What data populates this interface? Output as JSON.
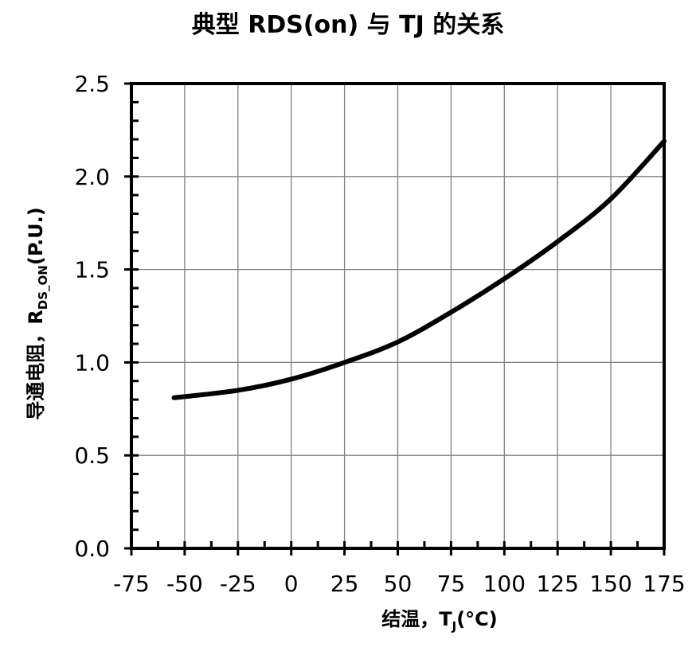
{
  "chart_data": {
    "type": "line",
    "title": "典型 RDS(on) 与 TJ 的关系",
    "ylabel": {
      "main": "导通电阻，R",
      "sub": "DS_ON",
      "tail": "(P.U.)"
    },
    "xlabel": {
      "main": "结温，T",
      "sub": "J",
      "tail": "(°C)"
    },
    "xlim": [
      -75,
      175
    ],
    "ylim": [
      0.0,
      2.5
    ],
    "x_ticks": [
      -75,
      -50,
      -25,
      0,
      25,
      50,
      75,
      100,
      125,
      150,
      175
    ],
    "y_ticks": [
      0.0,
      0.5,
      1.0,
      1.5,
      2.0,
      2.5
    ],
    "x_tick_labels": [
      "-75",
      "-50",
      "-25",
      "0",
      "25",
      "50",
      "75",
      "100",
      "125",
      "150",
      "175"
    ],
    "y_tick_labels": [
      "0.0",
      "0.5",
      "1.0",
      "1.5",
      "2.0",
      "2.5"
    ],
    "grid": true,
    "series": [
      {
        "color": "#000000",
        "x": [
          -55,
          -25,
          0,
          25,
          50,
          75,
          100,
          125,
          150,
          175
        ],
        "y": [
          0.81,
          0.85,
          0.91,
          1.0,
          1.11,
          1.27,
          1.45,
          1.65,
          1.88,
          2.19
        ]
      }
    ]
  }
}
